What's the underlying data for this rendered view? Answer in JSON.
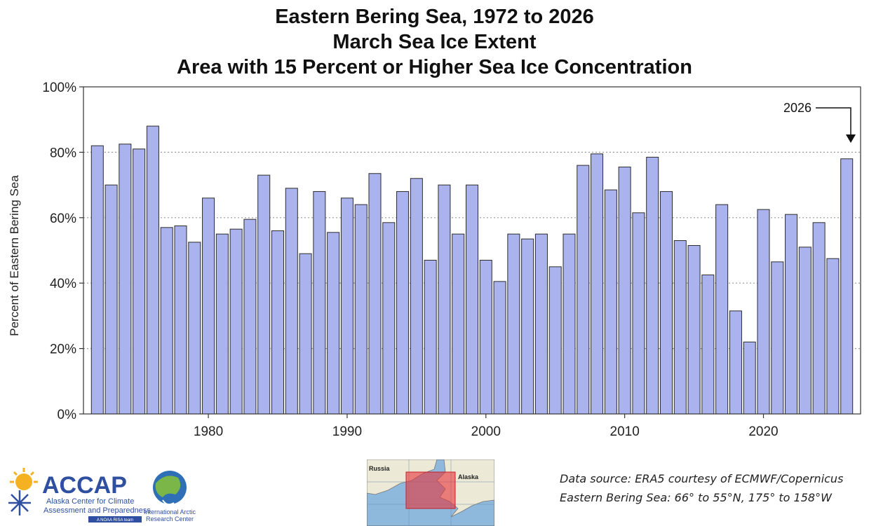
{
  "chart_data": {
    "type": "bar",
    "title": [
      "Eastern Bering Sea, 1972 to 2026",
      "March Sea Ice Extent",
      "Area with 15 Percent or Higher Sea Ice Concentration"
    ],
    "ylabel": "Percent of Eastern Bering Sea",
    "xlabel": "",
    "ylim": [
      0,
      100
    ],
    "yticks": [
      "0%",
      "20%",
      "40%",
      "60%",
      "80%",
      "100%"
    ],
    "xticks": [
      "1980",
      "1990",
      "2000",
      "2010",
      "2020"
    ],
    "grid": "horizontal dotted at 20% intervals",
    "bar_color": "#aab3ee",
    "annotation": "2026",
    "categories": [
      1972,
      1973,
      1974,
      1975,
      1976,
      1977,
      1978,
      1979,
      1980,
      1981,
      1982,
      1983,
      1984,
      1985,
      1986,
      1987,
      1988,
      1989,
      1990,
      1991,
      1992,
      1993,
      1994,
      1995,
      1996,
      1997,
      1998,
      1999,
      2000,
      2001,
      2002,
      2003,
      2004,
      2005,
      2006,
      2007,
      2008,
      2009,
      2010,
      2011,
      2012,
      2013,
      2014,
      2015,
      2016,
      2017,
      2018,
      2019,
      2020,
      2021,
      2022,
      2023,
      2024,
      2025,
      2026
    ],
    "values": [
      82,
      70,
      82.5,
      81,
      88,
      57,
      57.5,
      52.5,
      66,
      55,
      56.5,
      59.5,
      73,
      56,
      69,
      49,
      68,
      55.5,
      66,
      64,
      73.5,
      58.5,
      68,
      72,
      47,
      70,
      55,
      70,
      47,
      40.5,
      55,
      53.5,
      55,
      45,
      55,
      76,
      79.5,
      68.5,
      75.5,
      61.5,
      78.5,
      68,
      53,
      51.5,
      42.5,
      64,
      31.5,
      22,
      62.5,
      46.5,
      61,
      51,
      58.5,
      47.5,
      78
    ]
  },
  "logos": {
    "accap_name": "ACCAP",
    "accap_line1": "Alaska Center for Climate",
    "accap_line2": "Assessment and Preparedness",
    "accap_tag": "A NOAA RISA team",
    "iarc_line1": "International Arctic",
    "iarc_line2": "Research Center"
  },
  "map": {
    "label_russia": "Russia",
    "label_alaska": "Alaska"
  },
  "source": {
    "line1": "Data source: ERA5 courtesy of ECMWF/Copernicus",
    "line2": "Eastern Bering Sea: 66° to 55°N, 175° to 158°W"
  }
}
